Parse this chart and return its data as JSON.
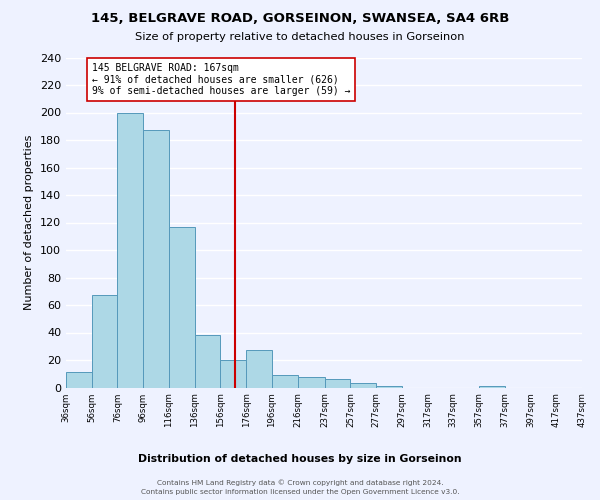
{
  "title1": "145, BELGRAVE ROAD, GORSEINON, SWANSEA, SA4 6RB",
  "title2": "Size of property relative to detached houses in Gorseinon",
  "xlabel": "Distribution of detached houses by size in Gorseinon",
  "ylabel": "Number of detached properties",
  "bar_lefts": [
    36,
    56,
    76,
    96,
    116,
    136,
    156,
    176,
    196,
    216,
    237,
    257,
    277,
    297,
    317,
    337,
    357,
    377,
    397,
    417
  ],
  "bar_heights": [
    11,
    67,
    200,
    187,
    117,
    38,
    20,
    27,
    9,
    8,
    6,
    3,
    1,
    0,
    0,
    0,
    1,
    0,
    0,
    0
  ],
  "bar_widths": [
    20,
    20,
    20,
    20,
    20,
    20,
    20,
    20,
    20,
    21,
    20,
    20,
    20,
    20,
    20,
    20,
    20,
    20,
    20,
    20
  ],
  "bar_color": "#add8e6",
  "bar_edge_color": "#5599bb",
  "vline_x": 167,
  "vline_color": "#cc0000",
  "annotation_line1": "145 BELGRAVE ROAD: 167sqm",
  "annotation_line2": "← 91% of detached houses are smaller (626)",
  "annotation_line3": "9% of semi-detached houses are larger (59) →",
  "annotation_box_color": "#ffffff",
  "annotation_box_edge": "#cc0000",
  "tick_labels": [
    "36sqm",
    "56sqm",
    "76sqm",
    "96sqm",
    "116sqm",
    "136sqm",
    "156sqm",
    "176sqm",
    "196sqm",
    "216sqm",
    "237sqm",
    "257sqm",
    "277sqm",
    "297sqm",
    "317sqm",
    "337sqm",
    "357sqm",
    "377sqm",
    "397sqm",
    "417sqm",
    "437sqm"
  ],
  "tick_positions": [
    36,
    56,
    76,
    96,
    116,
    136,
    156,
    176,
    196,
    216,
    237,
    257,
    277,
    297,
    317,
    337,
    357,
    377,
    397,
    417,
    437
  ],
  "ylim": [
    0,
    240
  ],
  "yticks": [
    0,
    20,
    40,
    60,
    80,
    100,
    120,
    140,
    160,
    180,
    200,
    220,
    240
  ],
  "xlim": [
    36,
    437
  ],
  "footnote1": "Contains HM Land Registry data © Crown copyright and database right 2024.",
  "footnote2": "Contains public sector information licensed under the Open Government Licence v3.0.",
  "bg_color": "#eef2ff",
  "grid_color": "#ffffff"
}
